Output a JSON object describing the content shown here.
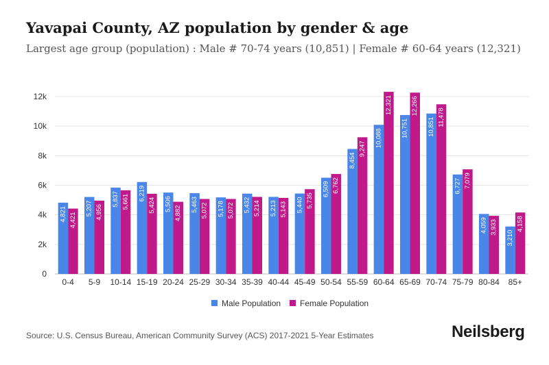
{
  "chart_data": {
    "type": "bar",
    "title": "Yavapai County, AZ population by gender & age",
    "subtitle": "Largest age group (population) : Male # 70-74 years (10,851) | Female # 60-64 years (12,321)",
    "categories": [
      "0-4",
      "5-9",
      "10-14",
      "15-19",
      "20-24",
      "25-29",
      "30-34",
      "35-39",
      "40-44",
      "45-49",
      "50-54",
      "55-59",
      "60-64",
      "65-69",
      "70-74",
      "75-79",
      "80-84",
      "85+"
    ],
    "series": [
      {
        "name": "Male Population",
        "color": "#4a86e8",
        "values": [
          4821,
          5207,
          5837,
          6219,
          5506,
          5463,
          5178,
          5432,
          5213,
          5440,
          6509,
          8454,
          10088,
          10751,
          10851,
          6727,
          4059,
          3210
        ]
      },
      {
        "name": "Female Population",
        "color": "#c0198a",
        "values": [
          4421,
          4956,
          5661,
          5424,
          4882,
          5072,
          5072,
          5214,
          5143,
          5735,
          6762,
          9247,
          12321,
          12266,
          11478,
          7079,
          3933,
          4158
        ]
      }
    ],
    "ylim": [
      0,
      12000
    ],
    "yticks": [
      0,
      2000,
      4000,
      6000,
      8000,
      10000,
      12000
    ],
    "ytick_labels": [
      "0",
      "2k",
      "4k",
      "6k",
      "8k",
      "10k",
      "12k"
    ],
    "legend_position": "bottom-center",
    "grid": true
  },
  "footer": {
    "source": "Source: U.S. Census Bureau, American Community Survey (ACS) 2017-2021 5-Year Estimates",
    "brand": "Neilsberg"
  }
}
